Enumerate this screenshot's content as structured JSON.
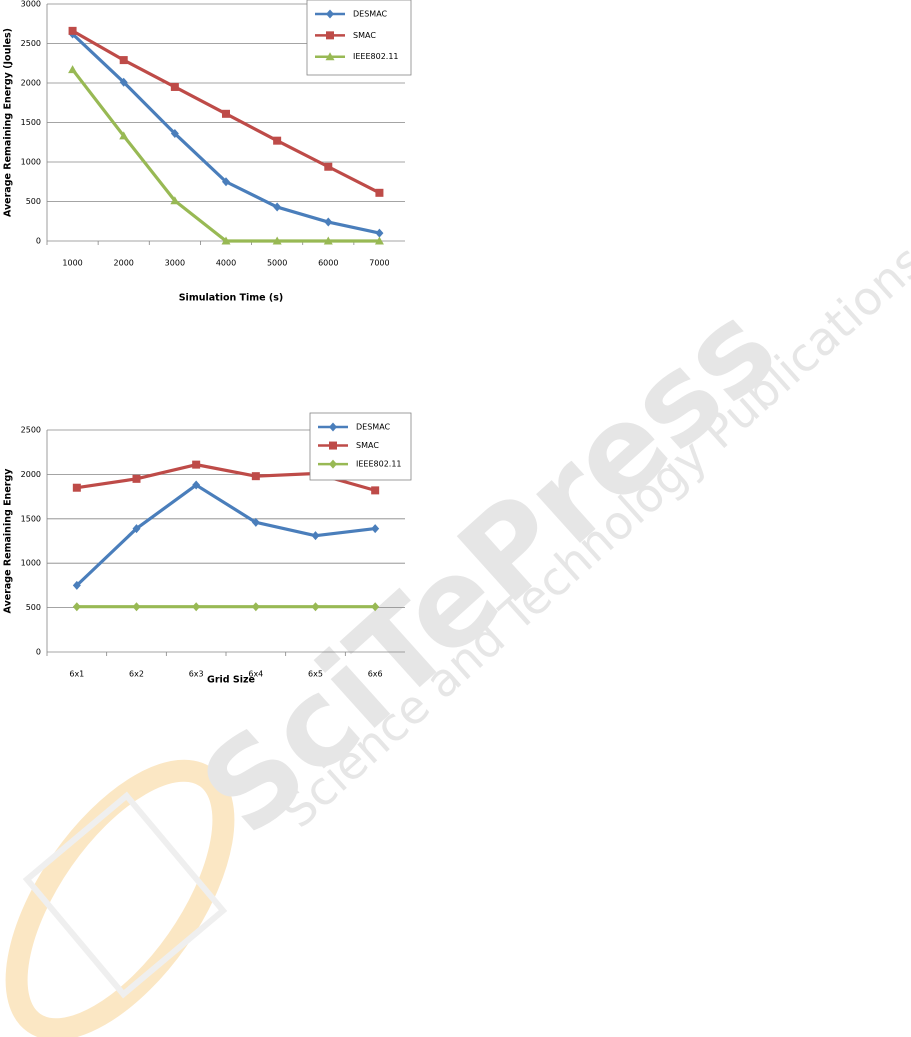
{
  "chart_data": [
    {
      "type": "line",
      "y_label": "Average Remaining Energy (Joules)",
      "x_label": "Simulation Time (s)",
      "categories": [
        "1000",
        "2000",
        "3000",
        "4000",
        "5000",
        "6000",
        "7000"
      ],
      "ylim": [
        0,
        3000
      ],
      "yticks": [
        0,
        500,
        1000,
        1500,
        2000,
        2500,
        3000
      ],
      "grid": true,
      "legend": "top-right",
      "series": [
        {
          "name": "DESMAC",
          "color": "#4a7ebb",
          "marker": "diamond",
          "values": [
            2620,
            2010,
            1360,
            750,
            430,
            240,
            100
          ]
        },
        {
          "name": "SMAC",
          "color": "#be4b48",
          "marker": "square",
          "values": [
            2660,
            2290,
            1950,
            1610,
            1270,
            940,
            610
          ]
        },
        {
          "name": "IEEE802.11",
          "color": "#98b954",
          "marker": "triangle",
          "values": [
            2170,
            1330,
            510,
            0,
            0,
            0,
            0
          ]
        }
      ]
    },
    {
      "type": "line",
      "y_label": "Average Remaining Energy",
      "x_label": "Grid Size",
      "categories": [
        "6x1",
        "6x2",
        "6x3",
        "6x4",
        "6x5",
        "6x6"
      ],
      "ylim": [
        0,
        2500
      ],
      "yticks": [
        0,
        500,
        1000,
        1500,
        2000,
        2500
      ],
      "grid": true,
      "legend": "top-right",
      "series": [
        {
          "name": "DESMAC",
          "color": "#4a7ebb",
          "marker": "diamond",
          "values": [
            750,
            1390,
            1880,
            1460,
            1310,
            1390
          ]
        },
        {
          "name": "SMAC",
          "color": "#be4b48",
          "marker": "square",
          "values": [
            1850,
            1950,
            2110,
            1980,
            2010,
            1820
          ]
        },
        {
          "name": "IEEE802.11",
          "color": "#98b954",
          "marker": "diamond",
          "values": [
            510,
            510,
            510,
            510,
            510,
            510
          ]
        }
      ]
    }
  ],
  "watermark": {
    "brand": "SciTePress",
    "tagline": "Science and Technology Publications"
  }
}
